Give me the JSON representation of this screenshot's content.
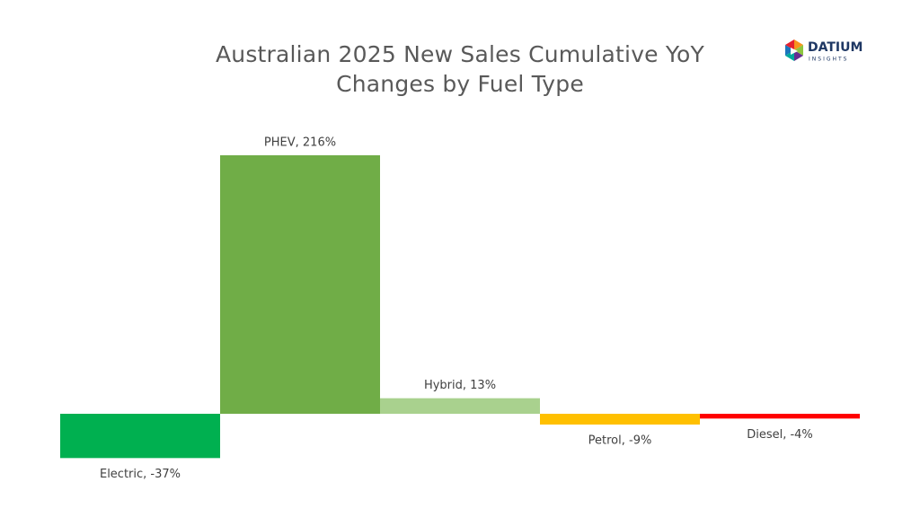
{
  "chart_data": {
    "type": "bar",
    "title": "Australian 2025 New Sales Cumulative YoY Changes by Fuel Type",
    "values": [
      -37,
      216,
      13,
      -9,
      -4
    ],
    "value_labels": [
      "Electric, -37%",
      "PHEV, 216%",
      "Hybrid, 13%",
      "Petrol, -9%",
      "Diesel, -4%"
    ],
    "colors": [
      "#00b050",
      "#70ad47",
      "#a9d18e",
      "#ffc000",
      "#ff0000"
    ]
  },
  "logo": {
    "name": "DATIUM",
    "tagline": "INSIGHTS"
  }
}
